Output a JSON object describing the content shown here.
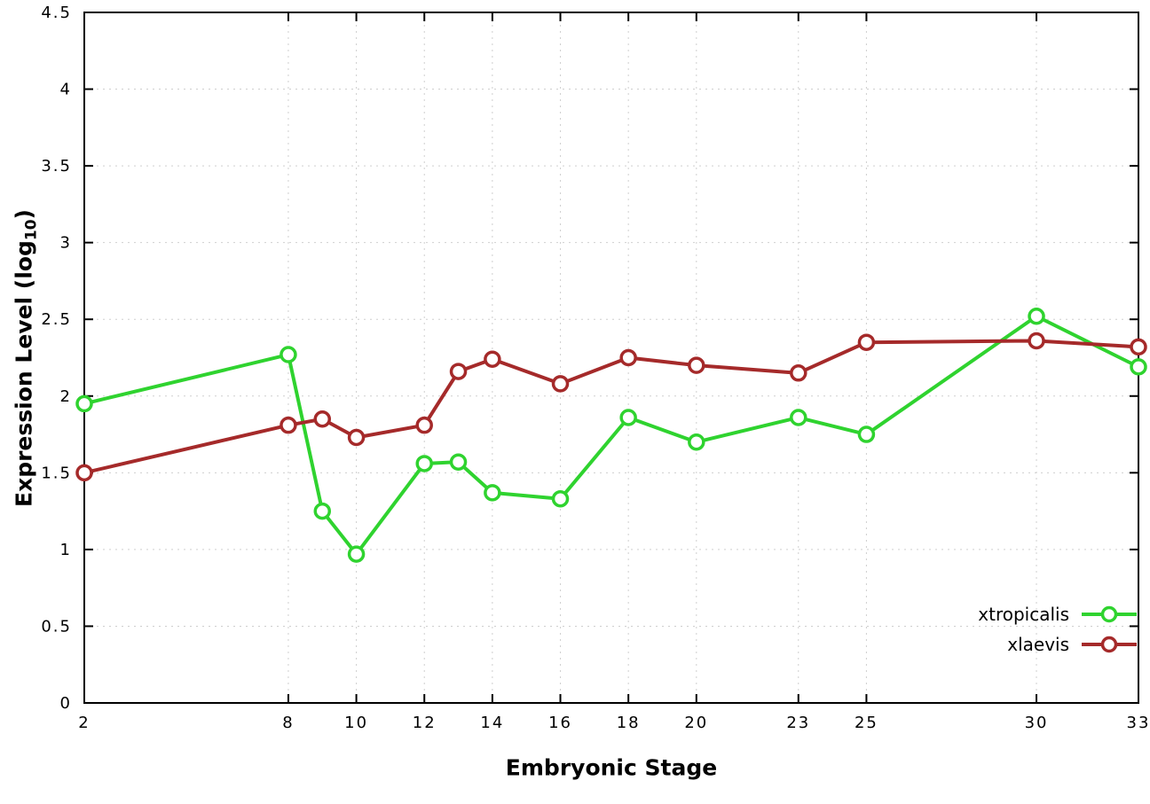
{
  "chart_data": {
    "type": "line",
    "title": "",
    "xlabel": "Embryonic Stage",
    "ylabel": "Expression Level (log10)",
    "ylabel_parts": [
      "Expression Level (log",
      "10",
      ")"
    ],
    "x": [
      2,
      8,
      9,
      10,
      12,
      13,
      14,
      16,
      18,
      20,
      23,
      25,
      30,
      33
    ],
    "xticks": [
      2,
      8,
      10,
      12,
      14,
      16,
      18,
      20,
      23,
      25,
      30,
      33
    ],
    "yticks": [
      0,
      0.5,
      1,
      1.5,
      2,
      2.5,
      3,
      3.5,
      4,
      4.5
    ],
    "xlim": [
      2,
      33
    ],
    "ylim": [
      0,
      4.5
    ],
    "grid": true,
    "legend_position": "bottom-right",
    "series": [
      {
        "name": "xtropicalis",
        "color": "#2fd32f",
        "values": [
          1.95,
          2.27,
          1.25,
          0.97,
          1.56,
          1.57,
          1.37,
          1.33,
          1.86,
          1.7,
          1.86,
          1.75,
          2.52,
          2.19
        ]
      },
      {
        "name": "xlaevis",
        "color": "#a52a2a",
        "values": [
          1.5,
          1.81,
          1.85,
          1.73,
          1.81,
          2.16,
          2.24,
          2.08,
          2.25,
          2.2,
          2.15,
          2.35,
          2.36,
          2.32
        ]
      }
    ]
  }
}
